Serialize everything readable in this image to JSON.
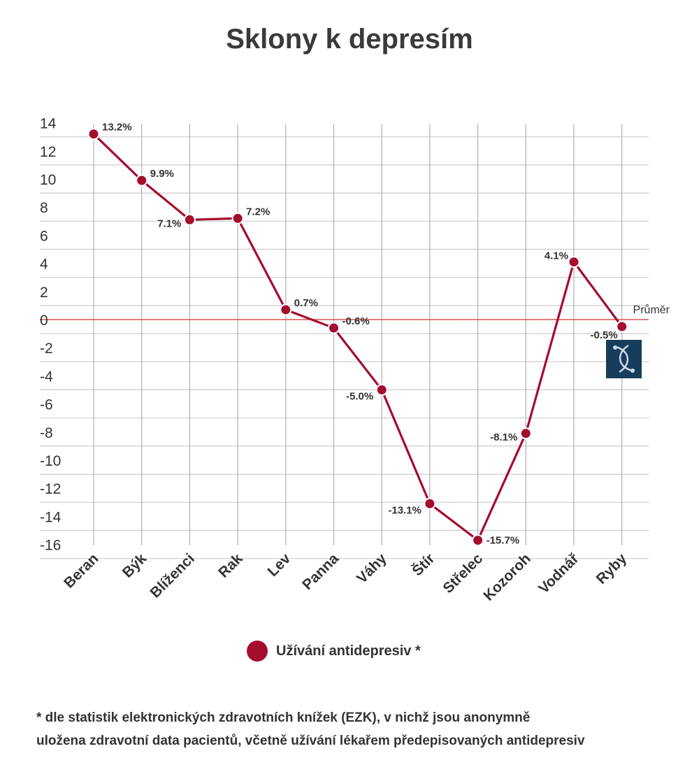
{
  "chart_data": {
    "type": "line",
    "title": "Sklony k depresím",
    "categories": [
      "Beran",
      "Býk",
      "Blíženci",
      "Rak",
      "Lev",
      "Panna",
      "Váhy",
      "Štír",
      "Střelec",
      "Kozoroh",
      "Vodnář",
      "Ryby"
    ],
    "series": [
      {
        "name": "Užívání antidepresiv *",
        "values": [
          13.2,
          9.9,
          7.1,
          7.2,
          0.7,
          -0.6,
          -5.0,
          -13.1,
          -15.7,
          -8.1,
          4.1,
          -0.5
        ],
        "data_labels": [
          "13.2%",
          "9.9%",
          "7.1%",
          "7.2%",
          "0.7%",
          "-0.6%",
          "-5.0%",
          "-13.1%",
          "-15.7%",
          "-8.1%",
          "4.1%",
          "-0.5%"
        ],
        "color": "#a50d2f"
      }
    ],
    "y_ticks": [
      14,
      12,
      10,
      8,
      6,
      4,
      2,
      0,
      -2,
      -4,
      -6,
      -8,
      -10,
      -12,
      -14,
      -16
    ],
    "ylim": [
      -16,
      14
    ],
    "grid": true,
    "reference_line": {
      "label": "Průměr",
      "value": 0,
      "color": "#d9534f"
    },
    "legend_position": "bottom",
    "xlabel": "",
    "ylabel": ""
  },
  "legend": {
    "label": "Užívání antidepresiv *"
  },
  "footnote": {
    "line1": "* dle statistik elektronických zdravotních knížek (EZK), v nichž jsou anonymně",
    "line2": "uložena zdravotní data pacientů, včetně užívání lékařem předepisovaných antidepresiv"
  },
  "icon": {
    "name": "pisces-icon",
    "bg_color": "#163d5c"
  }
}
